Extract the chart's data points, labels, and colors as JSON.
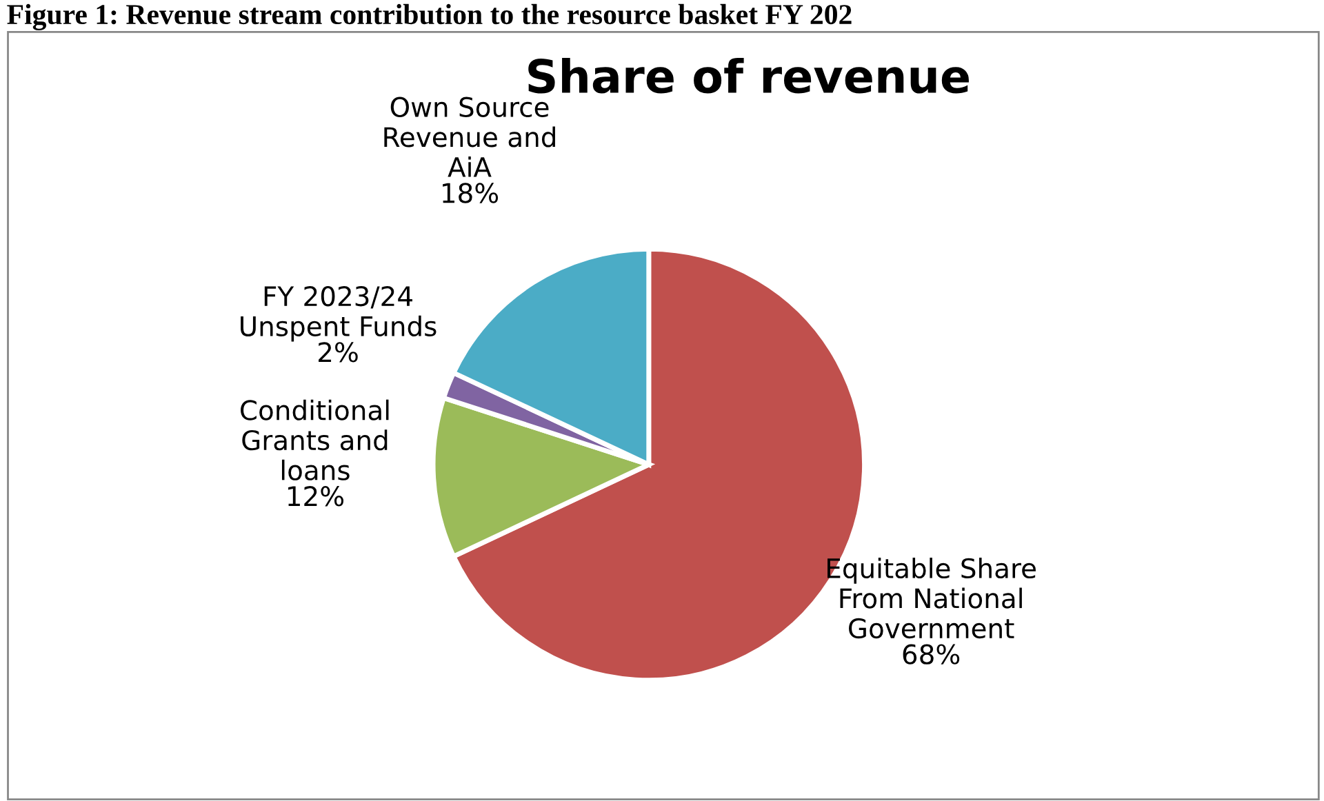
{
  "chart_data": {
    "type": "pie",
    "title": "Share of revenue",
    "categories": [
      "Equitable Share\nFrom National\nGovernment",
      "Conditional\nGrants and\nloans",
      "FY 2023/24\nUnspent Funds",
      "Own Source\nRevenue and\nAiA"
    ],
    "values": [
      68,
      12,
      2,
      18
    ],
    "colors": [
      "#c0504d",
      "#9bbb59",
      "#8064a2",
      "#4bacc6"
    ],
    "annotations": [
      "Figure 1: Revenue stream contribution to the resource basket FY 202"
    ],
    "value_labels": [
      "68%",
      "12%",
      "2%",
      "18%"
    ],
    "legend": false
  }
}
